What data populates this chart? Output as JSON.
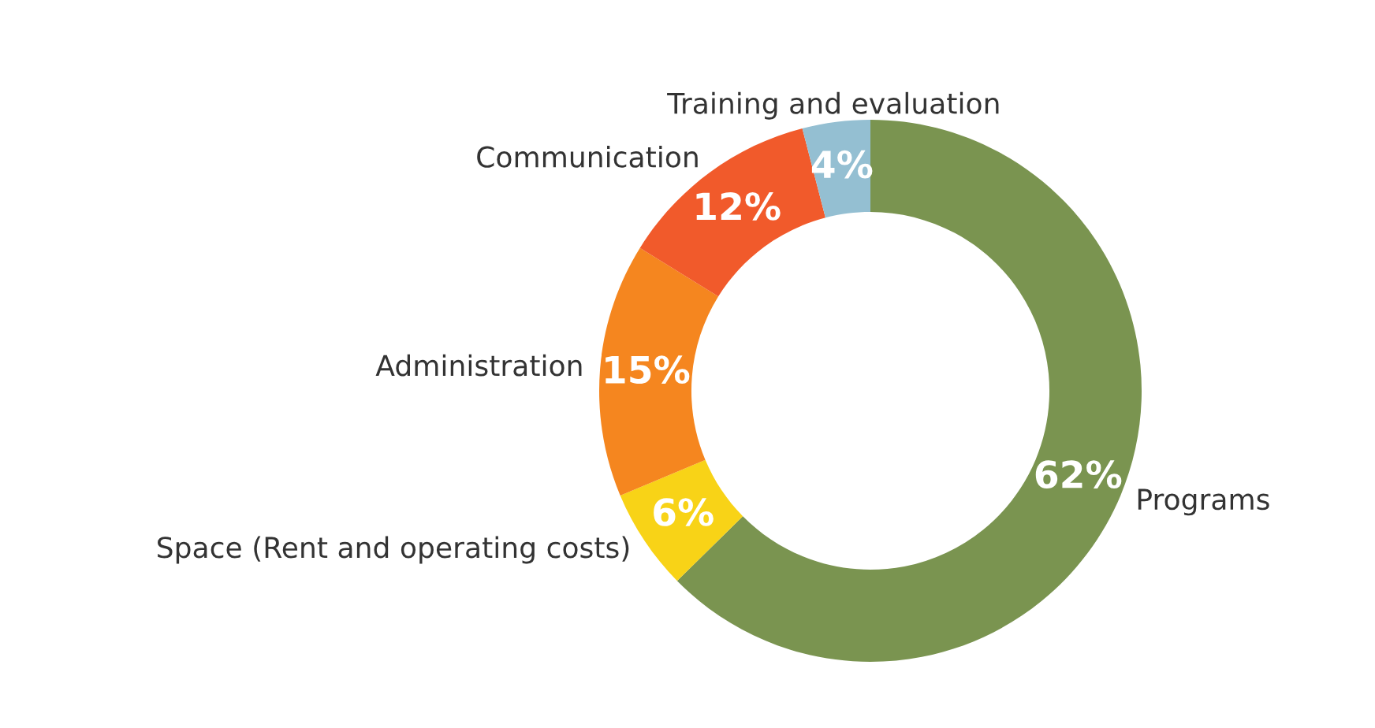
{
  "chart_data": {
    "type": "donut",
    "categories": [
      "Programs",
      "Space (Rent and operating costs)",
      "Administration",
      "Communication",
      "Training and evaluation"
    ],
    "values": [
      62,
      6,
      15,
      12,
      4
    ],
    "colors": [
      "#7a9450",
      "#f8d317",
      "#f5861f",
      "#f15a2b",
      "#94bfd2"
    ],
    "value_labels": [
      "62%",
      "6%",
      "15%",
      "12%",
      "4%"
    ]
  }
}
